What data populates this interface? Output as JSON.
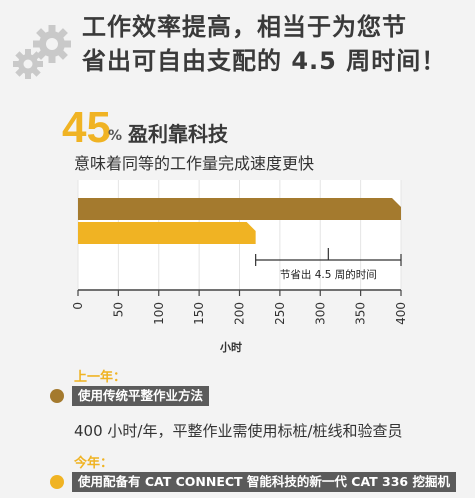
{
  "headline": {
    "line1": "工作效率提高，相当于为您节",
    "line2": "省出可自由支配的 4.5 周时间！"
  },
  "highlight": {
    "number": "45",
    "sign": "%",
    "label": "盈利靠科技",
    "subline": "意味着同等的工作量完成速度更快"
  },
  "chart_data": {
    "type": "bar",
    "orientation": "horizontal",
    "categories": [
      "上一年",
      "今年"
    ],
    "values": [
      400,
      220
    ],
    "colors": [
      "#a47a2e",
      "#f0b323"
    ],
    "xlim": [
      0,
      400
    ],
    "xticks": [
      "0",
      "50",
      "100",
      "150",
      "200",
      "250",
      "300",
      "350",
      "400"
    ],
    "xlabel": "小时",
    "annotation": {
      "label": "节省出 4.5 周的时间",
      "from": 220,
      "to": 400
    }
  },
  "sections": {
    "last_year": {
      "label": "上一年：",
      "pill": "使用传统平整作业方法",
      "description": "400 小时/年，平整作业需使用标桩/桩线和验查员",
      "color": "#a47a2e"
    },
    "this_year": {
      "label": "今年：",
      "pill": "使用配备有 CAT CONNECT 智能科技的新一代 CAT 336 挖掘机",
      "color": "#f0b323"
    }
  }
}
